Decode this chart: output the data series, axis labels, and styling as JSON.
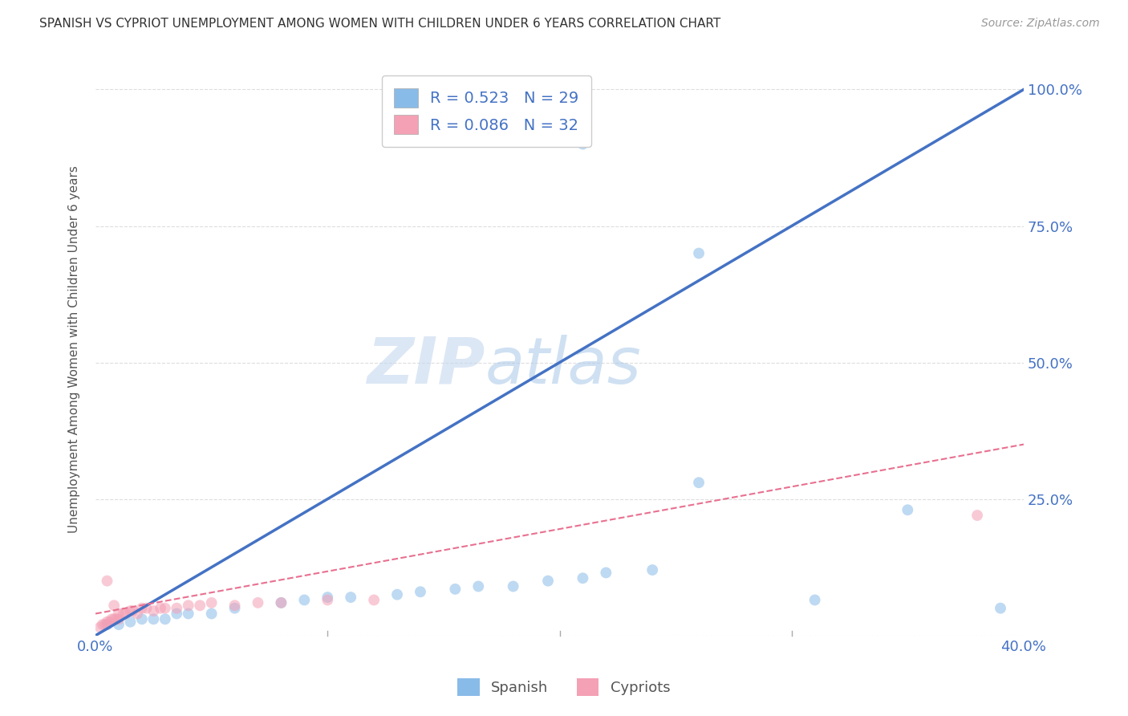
{
  "title": "SPANISH VS CYPRIOT UNEMPLOYMENT AMONG WOMEN WITH CHILDREN UNDER 6 YEARS CORRELATION CHART",
  "source": "Source: ZipAtlas.com",
  "ylabel": "Unemployment Among Women with Children Under 6 years",
  "xlim": [
    0.0,
    0.4
  ],
  "ylim": [
    0.0,
    1.05
  ],
  "yticks": [
    0.0,
    0.25,
    0.5,
    0.75,
    1.0
  ],
  "xtick_positions": [
    0.0,
    0.1,
    0.2,
    0.3,
    0.4
  ],
  "title_color": "#333333",
  "source_color": "#999999",
  "watermark_zip": "ZIP",
  "watermark_atlas": "atlas",
  "spanish_color": "#89BBE8",
  "cypriot_color": "#F4A0B5",
  "spanish_R": 0.523,
  "spanish_N": 29,
  "cypriot_R": 0.086,
  "cypriot_N": 32,
  "legend_label_spanish": "R = 0.523   N = 29",
  "legend_label_cypriot": "R = 0.086   N = 32",
  "spanish_scatter_x": [
    0.005,
    0.01,
    0.015,
    0.02,
    0.025,
    0.03,
    0.035,
    0.04,
    0.05,
    0.06,
    0.08,
    0.09,
    0.1,
    0.11,
    0.13,
    0.14,
    0.155,
    0.165,
    0.18,
    0.195,
    0.21,
    0.22,
    0.24,
    0.26,
    0.31,
    0.35,
    0.39,
    0.26,
    0.21
  ],
  "spanish_scatter_y": [
    0.02,
    0.02,
    0.025,
    0.03,
    0.03,
    0.03,
    0.04,
    0.04,
    0.04,
    0.05,
    0.06,
    0.065,
    0.07,
    0.07,
    0.075,
    0.08,
    0.085,
    0.09,
    0.09,
    0.1,
    0.105,
    0.115,
    0.12,
    0.28,
    0.065,
    0.23,
    0.05,
    0.7,
    0.9
  ],
  "cypriot_scatter_x": [
    0.002,
    0.003,
    0.004,
    0.005,
    0.006,
    0.007,
    0.008,
    0.009,
    0.01,
    0.01,
    0.012,
    0.013,
    0.015,
    0.016,
    0.018,
    0.02,
    0.022,
    0.025,
    0.028,
    0.03,
    0.035,
    0.04,
    0.045,
    0.05,
    0.06,
    0.07,
    0.08,
    0.1,
    0.12,
    0.38,
    0.005,
    0.008
  ],
  "cypriot_scatter_y": [
    0.015,
    0.02,
    0.02,
    0.025,
    0.025,
    0.03,
    0.03,
    0.03,
    0.03,
    0.04,
    0.04,
    0.04,
    0.045,
    0.045,
    0.04,
    0.05,
    0.05,
    0.045,
    0.05,
    0.05,
    0.05,
    0.055,
    0.055,
    0.06,
    0.055,
    0.06,
    0.06,
    0.065,
    0.065,
    0.22,
    0.1,
    0.055
  ],
  "spanish_line_color": "#4472C4",
  "cypriot_line_color": "#E87090",
  "background_color": "#ffffff",
  "grid_color": "#dddddd",
  "axis_label_color": "#4472C4",
  "scatter_size": 100,
  "scatter_alpha": 0.55
}
